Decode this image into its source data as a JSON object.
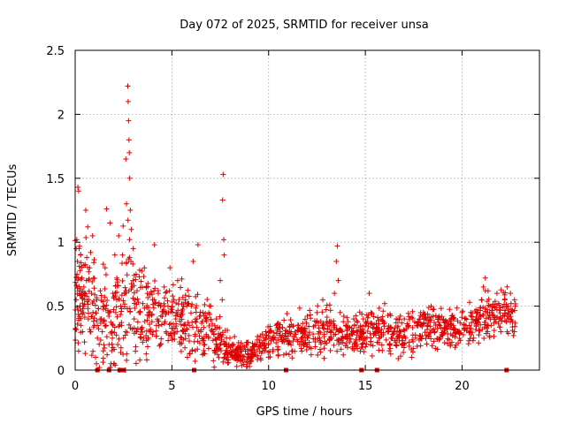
{
  "chart_data": {
    "type": "scatter",
    "title": "Day 072 of 2025, SRMTID for receiver unsa",
    "xlabel": "GPS time / hours",
    "ylabel": "SRMTID / TECUs",
    "xlim": [
      0,
      24
    ],
    "ylim": [
      0,
      2.5
    ],
    "x_ticks": [
      0,
      5,
      10,
      15,
      20
    ],
    "x_tick_labels": [
      "0",
      "5",
      "10",
      "15",
      "20"
    ],
    "y_ticks": [
      0,
      0.5,
      1,
      1.5,
      2,
      2.5
    ],
    "y_tick_labels": [
      "0",
      "0.5",
      "1",
      "1.5",
      "2",
      "2.5"
    ],
    "grid": true,
    "marker": "+",
    "color": "#e00000",
    "series": [
      {
        "name": "SRMTID",
        "points": [
          [
            0.05,
            0.95
          ],
          [
            0.05,
            0.55
          ],
          [
            0.08,
            1.02
          ],
          [
            0.1,
            0.75
          ],
          [
            0.12,
            0.85
          ],
          [
            0.14,
            1.43
          ],
          [
            0.18,
            1.4
          ],
          [
            0.2,
            0.62
          ],
          [
            0.22,
            0.42
          ],
          [
            0.25,
            0.5
          ],
          [
            0.28,
            0.9
          ],
          [
            0.3,
            0.35
          ],
          [
            0.35,
            0.72
          ],
          [
            0.38,
            0.3
          ],
          [
            0.42,
            0.45
          ],
          [
            0.45,
            0.65
          ],
          [
            0.48,
            0.22
          ],
          [
            0.5,
            0.58
          ],
          [
            0.55,
            1.25
          ],
          [
            0.58,
            0.7
          ],
          [
            0.6,
            0.88
          ],
          [
            0.65,
            1.12
          ],
          [
            0.68,
            0.4
          ],
          [
            0.7,
            0.55
          ],
          [
            0.75,
            0.8
          ],
          [
            0.78,
            0.3
          ],
          [
            0.8,
            0.92
          ],
          [
            0.85,
            0.6
          ],
          [
            0.9,
            1.05
          ],
          [
            0.92,
            0.45
          ],
          [
            0.95,
            0.72
          ],
          [
            1.0,
            0.35
          ],
          [
            1.05,
            0.1
          ],
          [
            1.1,
            0.05
          ],
          [
            1.12,
            0.55
          ],
          [
            1.15,
            0.25
          ],
          [
            1.2,
            0.48
          ],
          [
            1.25,
            0.02
          ],
          [
            1.3,
            0.62
          ],
          [
            1.35,
            0.4
          ],
          [
            1.4,
            0.3
          ],
          [
            1.45,
            0.15
          ],
          [
            1.5,
            0.5
          ],
          [
            1.55,
            0.8
          ],
          [
            1.6,
            0.35
          ],
          [
            1.62,
            1.26
          ],
          [
            1.65,
            0.12
          ],
          [
            1.7,
            0.45
          ],
          [
            1.75,
            0.2
          ],
          [
            1.8,
            1.15
          ],
          [
            1.85,
            0.05
          ],
          [
            1.9,
            0.3
          ],
          [
            1.95,
            0.6
          ],
          [
            2.0,
            0.05
          ],
          [
            2.05,
            0.9
          ],
          [
            2.1,
            0.45
          ],
          [
            2.15,
            0.55
          ],
          [
            2.2,
            0.2
          ],
          [
            2.25,
            1.05
          ],
          [
            2.3,
            0.0
          ],
          [
            2.35,
            0.5
          ],
          [
            2.4,
            0.35
          ],
          [
            2.45,
            0.9
          ],
          [
            2.5,
            0.25
          ],
          [
            2.55,
            0.6
          ],
          [
            2.6,
            0.0
          ],
          [
            2.62,
            1.65
          ],
          [
            2.65,
            1.3
          ],
          [
            2.7,
            0.48
          ],
          [
            2.72,
            2.22
          ],
          [
            2.74,
            2.1
          ],
          [
            2.76,
            1.95
          ],
          [
            2.78,
            1.8
          ],
          [
            2.8,
            1.7
          ],
          [
            2.82,
            1.5
          ],
          [
            2.85,
            1.25
          ],
          [
            2.88,
            0.85
          ],
          [
            2.9,
            1.1
          ],
          [
            2.95,
            0.65
          ],
          [
            3.0,
            0.95
          ],
          [
            3.05,
            0.4
          ],
          [
            3.1,
            0.55
          ],
          [
            3.15,
            0.3
          ],
          [
            3.2,
            0.62
          ],
          [
            3.3,
            0.45
          ],
          [
            3.4,
            0.25
          ],
          [
            3.5,
            0.52
          ],
          [
            3.6,
            0.38
          ],
          [
            3.7,
            0.08
          ],
          [
            3.8,
            0.45
          ],
          [
            3.9,
            0.3
          ],
          [
            4.0,
            0.55
          ],
          [
            4.1,
            0.98
          ],
          [
            4.2,
            0.35
          ],
          [
            4.3,
            0.6
          ],
          [
            4.4,
            0.2
          ],
          [
            4.5,
            0.42
          ],
          [
            4.6,
            0.65
          ],
          [
            4.7,
            0.3
          ],
          [
            4.8,
            0.5
          ],
          [
            4.9,
            0.8
          ],
          [
            5.0,
            0.25
          ],
          [
            5.1,
            0.55
          ],
          [
            5.2,
            0.4
          ],
          [
            5.3,
            0.7
          ],
          [
            5.4,
            0.22
          ],
          [
            5.5,
            0.45
          ],
          [
            5.6,
            0.3
          ],
          [
            5.7,
            0.55
          ],
          [
            5.8,
            0.1
          ],
          [
            5.9,
            0.35
          ],
          [
            6.0,
            0.5
          ],
          [
            6.1,
            0.85
          ],
          [
            6.2,
            0.28
          ],
          [
            6.3,
            0.4
          ],
          [
            6.35,
            0.98
          ],
          [
            6.5,
            0.3
          ],
          [
            6.6,
            0.45
          ],
          [
            6.7,
            0.2
          ],
          [
            6.8,
            0.38
          ],
          [
            6.9,
            0.25
          ],
          [
            7.0,
            0.5
          ],
          [
            7.1,
            0.3
          ],
          [
            7.2,
            0.15
          ],
          [
            7.3,
            0.4
          ],
          [
            7.4,
            0.25
          ],
          [
            7.5,
            0.7
          ],
          [
            7.6,
            0.55
          ],
          [
            7.62,
            1.33
          ],
          [
            7.65,
            1.53
          ],
          [
            7.68,
            1.02
          ],
          [
            7.7,
            0.9
          ],
          [
            7.8,
            0.2
          ],
          [
            7.9,
            0.12
          ],
          [
            8.0,
            0.25
          ],
          [
            8.2,
            0.1
          ],
          [
            8.4,
            0.18
          ],
          [
            8.6,
            0.08
          ],
          [
            8.8,
            0.15
          ],
          [
            9.0,
            0.05
          ],
          [
            9.2,
            0.12
          ],
          [
            9.4,
            0.2
          ],
          [
            9.6,
            0.08
          ],
          [
            9.8,
            0.15
          ],
          [
            10.0,
            0.1
          ],
          [
            10.1,
            0.3
          ],
          [
            10.2,
            0.25
          ],
          [
            10.4,
            0.35
          ],
          [
            10.6,
            0.3
          ],
          [
            10.8,
            0.22
          ],
          [
            11.0,
            0.3
          ],
          [
            11.2,
            0.15
          ],
          [
            11.4,
            0.28
          ],
          [
            11.6,
            0.2
          ],
          [
            11.8,
            0.32
          ],
          [
            12.0,
            0.25
          ],
          [
            12.2,
            0.12
          ],
          [
            12.4,
            0.35
          ],
          [
            12.5,
            0.45
          ],
          [
            12.6,
            0.3
          ],
          [
            12.8,
            0.55
          ],
          [
            13.0,
            0.38
          ],
          [
            13.2,
            0.3
          ],
          [
            13.4,
            0.6
          ],
          [
            13.5,
            0.85
          ],
          [
            13.55,
            0.97
          ],
          [
            13.6,
            0.7
          ],
          [
            13.7,
            0.45
          ],
          [
            13.8,
            0.3
          ],
          [
            14.0,
            0.35
          ],
          [
            14.2,
            0.22
          ],
          [
            14.4,
            0.4
          ],
          [
            14.6,
            0.3
          ],
          [
            14.8,
            0.18
          ],
          [
            15.0,
            0.35
          ],
          [
            15.2,
            0.6
          ],
          [
            15.3,
            0.45
          ],
          [
            15.5,
            0.3
          ],
          [
            15.7,
            0.25
          ],
          [
            15.9,
            0.38
          ],
          [
            16.0,
            0.52
          ],
          [
            16.2,
            0.3
          ],
          [
            16.4,
            0.25
          ],
          [
            16.6,
            0.4
          ],
          [
            16.8,
            0.3
          ],
          [
            17.0,
            0.2
          ],
          [
            17.2,
            0.35
          ],
          [
            17.4,
            0.1
          ],
          [
            17.6,
            0.25
          ],
          [
            17.8,
            0.4
          ],
          [
            18.0,
            0.45
          ],
          [
            18.2,
            0.35
          ],
          [
            18.4,
            0.5
          ],
          [
            18.6,
            0.3
          ],
          [
            18.8,
            0.42
          ],
          [
            19.0,
            0.28
          ],
          [
            19.2,
            0.35
          ],
          [
            19.4,
            0.2
          ],
          [
            19.6,
            0.4
          ],
          [
            19.8,
            0.3
          ],
          [
            20.0,
            0.45
          ],
          [
            20.2,
            0.35
          ],
          [
            20.4,
            0.3
          ],
          [
            20.6,
            0.25
          ],
          [
            20.8,
            0.45
          ],
          [
            21.0,
            0.55
          ],
          [
            21.1,
            0.65
          ],
          [
            21.2,
            0.72
          ],
          [
            21.3,
            0.45
          ],
          [
            21.5,
            0.35
          ],
          [
            21.7,
            0.5
          ],
          [
            21.8,
            0.6
          ],
          [
            21.9,
            0.4
          ],
          [
            22.0,
            0.3
          ],
          [
            22.2,
            0.55
          ],
          [
            22.4,
            0.45
          ],
          [
            22.5,
            0.6
          ],
          [
            22.6,
            0.38
          ],
          [
            22.7,
            0.3
          ],
          [
            22.75,
            0.5
          ]
        ],
        "envelope_x": [
          0.0,
          1.0,
          2.0,
          2.7,
          3.0,
          4.0,
          5.0,
          6.0,
          7.0,
          8.0,
          9.0,
          10.0,
          11.0,
          12.0,
          13.0,
          14.0,
          15.0,
          16.0,
          17.0,
          18.0,
          19.0,
          20.0,
          21.0,
          22.0,
          22.8
        ],
        "envelope_mean": [
          0.6,
          0.5,
          0.35,
          0.6,
          0.5,
          0.45,
          0.42,
          0.35,
          0.3,
          0.15,
          0.12,
          0.25,
          0.28,
          0.3,
          0.32,
          0.28,
          0.3,
          0.3,
          0.25,
          0.35,
          0.33,
          0.32,
          0.4,
          0.45,
          0.4
        ],
        "envelope_spread": [
          0.35,
          0.3,
          0.3,
          0.4,
          0.3,
          0.25,
          0.22,
          0.2,
          0.18,
          0.08,
          0.07,
          0.1,
          0.12,
          0.12,
          0.15,
          0.12,
          0.12,
          0.12,
          0.12,
          0.12,
          0.12,
          0.12,
          0.15,
          0.15,
          0.12
        ]
      }
    ],
    "zero_markers": [
      1.15,
      1.75,
      2.3,
      2.4,
      2.5,
      6.15,
      10.9,
      14.8,
      15.6,
      22.3
    ]
  }
}
